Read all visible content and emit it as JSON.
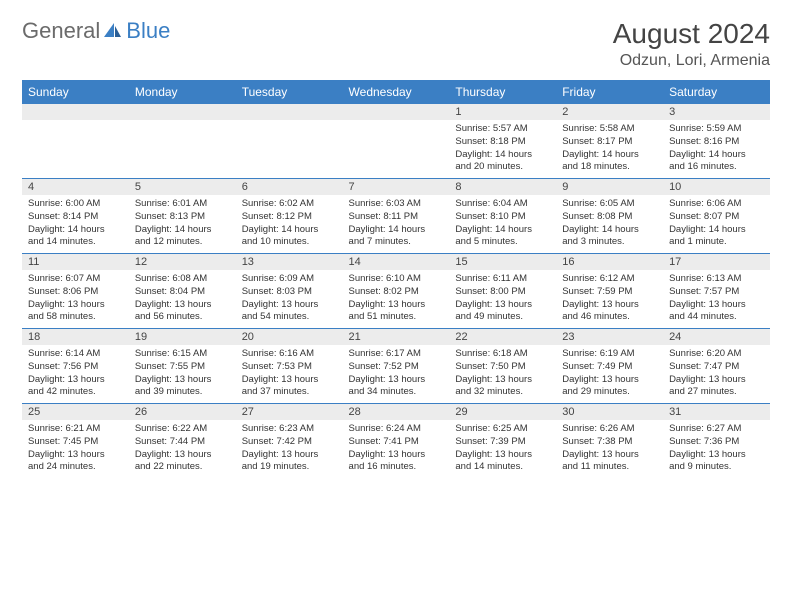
{
  "brand": {
    "part1": "General",
    "part2": "Blue"
  },
  "title": "August 2024",
  "location": "Odzun, Lori, Armenia",
  "colors": {
    "header_bg": "#3b7fc4",
    "header_fg": "#ffffff",
    "daynum_bg": "#ececec",
    "rule": "#3b7fc4",
    "title_color": "#444444",
    "logo_gray": "#6b6b6b",
    "logo_blue": "#3b7fc4"
  },
  "day_headers": [
    "Sunday",
    "Monday",
    "Tuesday",
    "Wednesday",
    "Thursday",
    "Friday",
    "Saturday"
  ],
  "weeks": [
    [
      null,
      null,
      null,
      null,
      {
        "n": "1",
        "sunrise": "5:57 AM",
        "sunset": "8:18 PM",
        "daylight": "14 hours and 20 minutes."
      },
      {
        "n": "2",
        "sunrise": "5:58 AM",
        "sunset": "8:17 PM",
        "daylight": "14 hours and 18 minutes."
      },
      {
        "n": "3",
        "sunrise": "5:59 AM",
        "sunset": "8:16 PM",
        "daylight": "14 hours and 16 minutes."
      }
    ],
    [
      {
        "n": "4",
        "sunrise": "6:00 AM",
        "sunset": "8:14 PM",
        "daylight": "14 hours and 14 minutes."
      },
      {
        "n": "5",
        "sunrise": "6:01 AM",
        "sunset": "8:13 PM",
        "daylight": "14 hours and 12 minutes."
      },
      {
        "n": "6",
        "sunrise": "6:02 AM",
        "sunset": "8:12 PM",
        "daylight": "14 hours and 10 minutes."
      },
      {
        "n": "7",
        "sunrise": "6:03 AM",
        "sunset": "8:11 PM",
        "daylight": "14 hours and 7 minutes."
      },
      {
        "n": "8",
        "sunrise": "6:04 AM",
        "sunset": "8:10 PM",
        "daylight": "14 hours and 5 minutes."
      },
      {
        "n": "9",
        "sunrise": "6:05 AM",
        "sunset": "8:08 PM",
        "daylight": "14 hours and 3 minutes."
      },
      {
        "n": "10",
        "sunrise": "6:06 AM",
        "sunset": "8:07 PM",
        "daylight": "14 hours and 1 minute."
      }
    ],
    [
      {
        "n": "11",
        "sunrise": "6:07 AM",
        "sunset": "8:06 PM",
        "daylight": "13 hours and 58 minutes."
      },
      {
        "n": "12",
        "sunrise": "6:08 AM",
        "sunset": "8:04 PM",
        "daylight": "13 hours and 56 minutes."
      },
      {
        "n": "13",
        "sunrise": "6:09 AM",
        "sunset": "8:03 PM",
        "daylight": "13 hours and 54 minutes."
      },
      {
        "n": "14",
        "sunrise": "6:10 AM",
        "sunset": "8:02 PM",
        "daylight": "13 hours and 51 minutes."
      },
      {
        "n": "15",
        "sunrise": "6:11 AM",
        "sunset": "8:00 PM",
        "daylight": "13 hours and 49 minutes."
      },
      {
        "n": "16",
        "sunrise": "6:12 AM",
        "sunset": "7:59 PM",
        "daylight": "13 hours and 46 minutes."
      },
      {
        "n": "17",
        "sunrise": "6:13 AM",
        "sunset": "7:57 PM",
        "daylight": "13 hours and 44 minutes."
      }
    ],
    [
      {
        "n": "18",
        "sunrise": "6:14 AM",
        "sunset": "7:56 PM",
        "daylight": "13 hours and 42 minutes."
      },
      {
        "n": "19",
        "sunrise": "6:15 AM",
        "sunset": "7:55 PM",
        "daylight": "13 hours and 39 minutes."
      },
      {
        "n": "20",
        "sunrise": "6:16 AM",
        "sunset": "7:53 PM",
        "daylight": "13 hours and 37 minutes."
      },
      {
        "n": "21",
        "sunrise": "6:17 AM",
        "sunset": "7:52 PM",
        "daylight": "13 hours and 34 minutes."
      },
      {
        "n": "22",
        "sunrise": "6:18 AM",
        "sunset": "7:50 PM",
        "daylight": "13 hours and 32 minutes."
      },
      {
        "n": "23",
        "sunrise": "6:19 AM",
        "sunset": "7:49 PM",
        "daylight": "13 hours and 29 minutes."
      },
      {
        "n": "24",
        "sunrise": "6:20 AM",
        "sunset": "7:47 PM",
        "daylight": "13 hours and 27 minutes."
      }
    ],
    [
      {
        "n": "25",
        "sunrise": "6:21 AM",
        "sunset": "7:45 PM",
        "daylight": "13 hours and 24 minutes."
      },
      {
        "n": "26",
        "sunrise": "6:22 AM",
        "sunset": "7:44 PM",
        "daylight": "13 hours and 22 minutes."
      },
      {
        "n": "27",
        "sunrise": "6:23 AM",
        "sunset": "7:42 PM",
        "daylight": "13 hours and 19 minutes."
      },
      {
        "n": "28",
        "sunrise": "6:24 AM",
        "sunset": "7:41 PM",
        "daylight": "13 hours and 16 minutes."
      },
      {
        "n": "29",
        "sunrise": "6:25 AM",
        "sunset": "7:39 PM",
        "daylight": "13 hours and 14 minutes."
      },
      {
        "n": "30",
        "sunrise": "6:26 AM",
        "sunset": "7:38 PM",
        "daylight": "13 hours and 11 minutes."
      },
      {
        "n": "31",
        "sunrise": "6:27 AM",
        "sunset": "7:36 PM",
        "daylight": "13 hours and 9 minutes."
      }
    ]
  ],
  "labels": {
    "sunrise": "Sunrise: ",
    "sunset": "Sunset: ",
    "daylight": "Daylight: "
  }
}
